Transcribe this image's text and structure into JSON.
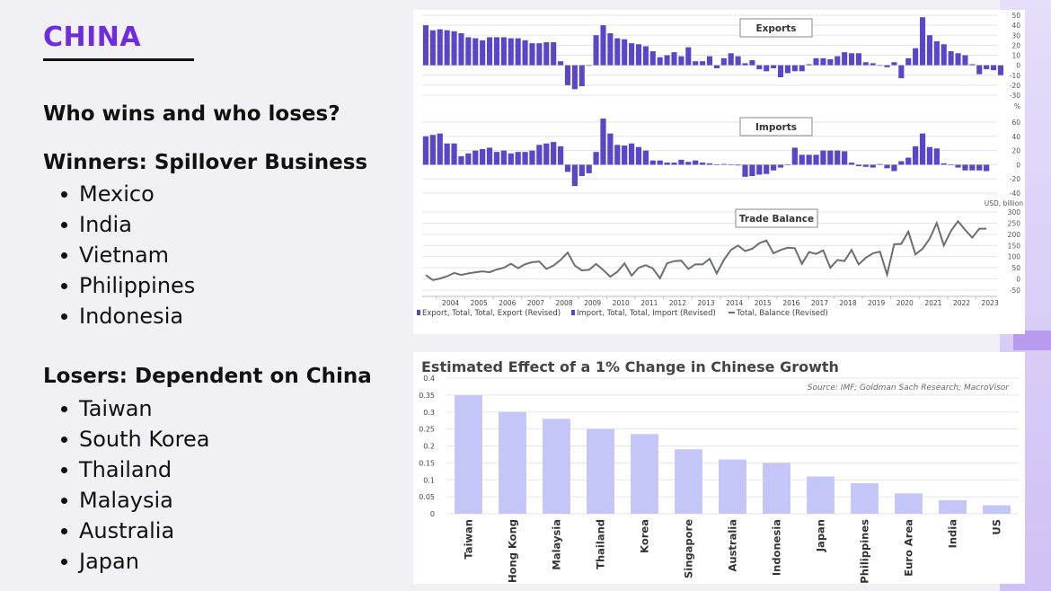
{
  "slide": {
    "title": "CHINA",
    "question": "Who wins and who loses?",
    "winners_heading": "Winners: Spillover Business",
    "winners": [
      "Mexico",
      "India",
      "Vietnam",
      "Philippines",
      "Indonesia"
    ],
    "losers_heading": "Losers: Dependent on China",
    "losers": [
      "Taiwan",
      "South Korea",
      "Thailand",
      "Malaysia",
      "Australia",
      "Japan"
    ]
  },
  "colors": {
    "accent": "#6e2be0",
    "trade_bar": "#5b45c9",
    "balance_line": "#6b6e72",
    "growth_bar": "#c5c6f8"
  },
  "chart_data": [
    {
      "type": "bar",
      "title": "Exports",
      "unit_label": "%",
      "x_start": 2003.5,
      "x_step": 0.25,
      "ylim": [
        -30,
        50
      ],
      "yticks": [
        50,
        40,
        30,
        20,
        10,
        0,
        -10,
        -20,
        -30
      ],
      "values": [
        40,
        35,
        36,
        35,
        34,
        32,
        28,
        27,
        25,
        28,
        28,
        28,
        27,
        27,
        25,
        22,
        22,
        23,
        23,
        4,
        -20,
        -24,
        -21,
        0,
        30,
        40,
        32,
        27,
        26,
        22,
        21,
        19,
        14,
        8,
        10,
        13,
        9,
        18,
        4,
        4,
        9,
        -3,
        7,
        12,
        9,
        2,
        5,
        -4,
        -6,
        -3,
        -12,
        -8,
        -6,
        -6,
        1,
        7,
        7,
        6,
        9,
        13,
        12,
        12,
        3,
        2,
        0,
        -2,
        3,
        -13,
        7,
        17,
        48,
        30,
        24,
        21,
        14,
        12,
        10,
        1,
        -9,
        -4,
        -5,
        -10
      ]
    },
    {
      "type": "bar",
      "title": "Imports",
      "unit_label": "USD, billion",
      "x_start": 2003.5,
      "x_step": 0.25,
      "ylim": [
        -40,
        60
      ],
      "yticks": [
        60,
        40,
        20,
        0,
        -20,
        -40
      ],
      "values": [
        40,
        42,
        44,
        30,
        30,
        12,
        16,
        20,
        22,
        24,
        18,
        20,
        16,
        18,
        18,
        20,
        28,
        30,
        32,
        26,
        -10,
        -30,
        -16,
        -12,
        18,
        65,
        44,
        28,
        27,
        30,
        25,
        20,
        6,
        6,
        3,
        3,
        7,
        4,
        6,
        3,
        2,
        0,
        1,
        0,
        -1,
        -17,
        -16,
        -14,
        -13,
        -8,
        -4,
        0,
        24,
        14,
        14,
        14,
        20,
        20,
        20,
        19,
        3,
        -2,
        -3,
        -4,
        1,
        -5,
        -9,
        5,
        10,
        26,
        44,
        25,
        23,
        2,
        0,
        -4,
        -8,
        -8,
        -8,
        -9
      ]
    },
    {
      "type": "line",
      "title": "Trade Balance",
      "x_start": 2003.5,
      "x_step": 0.25,
      "ylim": [
        -50,
        300
      ],
      "yticks": [
        300,
        250,
        200,
        150,
        100,
        50,
        0,
        -50
      ],
      "xticks": [
        "2004",
        "2005",
        "2006",
        "2007",
        "2008",
        "2009",
        "2010",
        "2011",
        "2012",
        "2013",
        "2014",
        "2015",
        "2016",
        "2017",
        "2018",
        "2019",
        "2020",
        "2021",
        "2022",
        "2023"
      ],
      "values": [
        17,
        -5,
        2,
        12,
        27,
        18,
        25,
        30,
        34,
        30,
        42,
        50,
        68,
        48,
        66,
        75,
        78,
        45,
        60,
        85,
        118,
        60,
        38,
        41,
        67,
        40,
        10,
        32,
        70,
        15,
        50,
        62,
        47,
        3,
        70,
        80,
        82,
        45,
        66,
        65,
        90,
        25,
        85,
        130,
        150,
        125,
        135,
        160,
        172,
        115,
        130,
        140,
        138,
        68,
        120,
        112,
        128,
        50,
        85,
        80,
        130,
        65,
        95,
        115,
        122,
        20,
        155,
        157,
        212,
        110,
        135,
        180,
        250,
        150,
        215,
        258,
        220,
        185,
        225,
        225
      ],
      "legend": [
        "Export, Total, Total, Export (Revised)",
        "Import, Total, Total, Import (Revised)",
        "Total, Balance (Revised)"
      ]
    },
    {
      "type": "bar",
      "title": "Estimated Effect of a 1% Change in Chinese Growth",
      "source": "Source: IMF; Goldman Sach Research; MacroVisor",
      "categories": [
        "Taiwan",
        "Hong Kong",
        "Malaysia",
        "Thailand",
        "Korea",
        "Singapore",
        "Australia",
        "Indonesia",
        "Japan",
        "Philippines",
        "Euro Area",
        "India",
        "US"
      ],
      "values": [
        0.35,
        0.3,
        0.28,
        0.25,
        0.235,
        0.19,
        0.16,
        0.15,
        0.11,
        0.09,
        0.06,
        0.04,
        0.025
      ],
      "ylim": [
        0,
        0.4
      ],
      "yticks": [
        "0.4",
        "0.35",
        "0.3",
        "0.25",
        "0.2",
        "0.15",
        "0.1",
        "0.05",
        "0"
      ]
    }
  ]
}
